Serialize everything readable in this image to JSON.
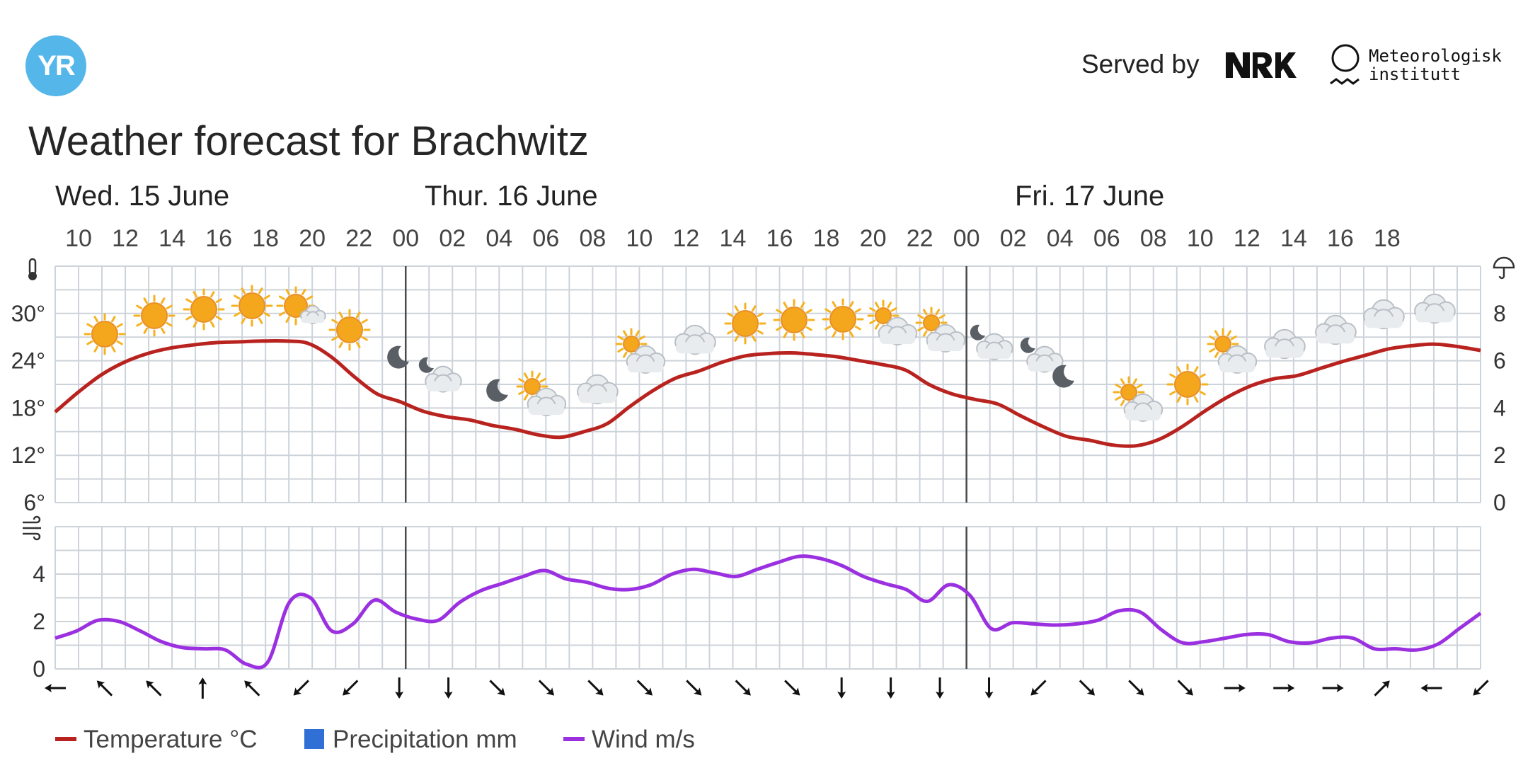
{
  "header": {
    "logo_text": "YR",
    "served_by": "Served by",
    "nrk_logo": "NRK",
    "met_line1": "Meteorologisk",
    "met_line2": "institutt"
  },
  "title": "Weather forecast for Brachwitz",
  "chart_data": {
    "type": "line",
    "days": [
      "Wed. 15 June",
      "Thur. 16 June",
      "Fri. 17 June"
    ],
    "x_labels": [
      "10",
      "12",
      "14",
      "16",
      "18",
      "20",
      "22",
      "00",
      "02",
      "04",
      "06",
      "08",
      "10",
      "12",
      "14",
      "16",
      "18",
      "20",
      "22",
      "00",
      "02",
      "04",
      "06",
      "08",
      "10",
      "12",
      "14",
      "16",
      "18"
    ],
    "temperature_axis": {
      "unit": "°",
      "ticks": [
        "6°",
        "12°",
        "18°",
        "24°",
        "30°"
      ],
      "ylim": [
        6,
        36
      ]
    },
    "precipitation_axis": {
      "ticks": [
        "0",
        "2",
        "4",
        "6",
        "8"
      ],
      "ylim": [
        0,
        10
      ]
    },
    "wind_axis": {
      "ticks": [
        "0",
        "2",
        "4"
      ],
      "ylim": [
        0,
        6
      ]
    },
    "series": [
      {
        "name": "Temperature °C",
        "color": "#b8231f",
        "values": [
          17.5,
          20.0,
          22.2,
          23.8,
          24.9,
          25.6,
          26.0,
          26.3,
          26.4,
          26.5,
          26.5,
          26.2,
          24.5,
          22.0,
          19.8,
          18.8,
          17.6,
          16.9,
          16.5,
          15.8,
          15.3,
          14.6,
          14.3,
          15.0,
          16.0,
          18.2,
          20.2,
          21.8,
          22.7,
          23.8,
          24.6,
          24.9,
          25.0,
          24.8,
          24.5,
          24.0,
          23.5,
          22.8,
          21.0,
          19.8,
          19.1,
          18.5,
          17.0,
          15.6,
          14.4,
          13.9,
          13.3,
          13.2,
          14.0,
          15.6,
          17.6,
          19.4,
          20.8,
          21.7,
          22.1,
          23.0,
          23.9,
          24.7,
          25.5,
          25.9,
          26.1,
          25.8,
          25.3
        ]
      },
      {
        "name": "Precipitation mm",
        "color": "#2f6fd6",
        "values": []
      },
      {
        "name": "Wind m/s",
        "color": "#9b30e0",
        "values": [
          1.3,
          1.6,
          2.05,
          2.0,
          1.6,
          1.15,
          0.9,
          0.85,
          0.8,
          0.2,
          0.3,
          2.8,
          3.0,
          1.6,
          1.9,
          2.9,
          2.4,
          2.1,
          2.05,
          2.8,
          3.3,
          3.6,
          3.9,
          4.15,
          3.8,
          3.65,
          3.4,
          3.35,
          3.55,
          4.0,
          4.2,
          4.05,
          3.9,
          4.2,
          4.5,
          4.75,
          4.65,
          4.35,
          3.9,
          3.6,
          3.35,
          2.85,
          3.55,
          3.1,
          1.7,
          1.95,
          1.9,
          1.85,
          1.9,
          2.05,
          2.45,
          2.4,
          1.65,
          1.1,
          1.15,
          1.3,
          1.45,
          1.45,
          1.15,
          1.1,
          1.3,
          1.3,
          0.85,
          0.85,
          0.8,
          1.05,
          1.7,
          2.35
        ]
      }
    ],
    "weather_icons": [
      "clear-sky-day",
      "clear-sky-day",
      "clear-sky-day",
      "clear-sky-day",
      "fair-day",
      "clear-sky-day",
      "clear-sky-night",
      "partly-cloudy-night",
      "clear-sky-night",
      "partly-cloudy-day",
      "cloudy",
      "partly-cloudy-day",
      "cloudy",
      "clear-sky-day",
      "clear-sky-day",
      "clear-sky-day",
      "partly-cloudy-day",
      "partly-cloudy-day",
      "partly-cloudy-night",
      "partly-cloudy-night",
      "clear-sky-night",
      "partly-cloudy-day",
      "clear-sky-day",
      "partly-cloudy-day",
      "cloudy",
      "cloudy",
      "cloudy",
      "cloudy"
    ],
    "wind_arrows": [
      "arrow-left-icon",
      "arrow-up-left-icon",
      "arrow-up-left-icon",
      "arrow-up-icon",
      "arrow-up-left-icon",
      "arrow-down-left-icon",
      "arrow-down-left-icon",
      "arrow-down-icon",
      "arrow-down-icon",
      "arrow-down-right-icon",
      "arrow-down-right-icon",
      "arrow-down-right-icon",
      "arrow-down-right-icon",
      "arrow-down-right-icon",
      "arrow-down-right-icon",
      "arrow-down-right-icon",
      "arrow-down-icon",
      "arrow-down-icon",
      "arrow-down-icon",
      "arrow-down-icon",
      "arrow-down-left-icon",
      "arrow-down-right-icon",
      "arrow-down-right-icon",
      "arrow-down-right-icon",
      "arrow-right-icon",
      "arrow-right-icon",
      "arrow-right-icon",
      "arrow-up-right-icon",
      "arrow-left-icon",
      "arrow-down-left-icon"
    ],
    "legend_placement": "bottom-left",
    "grid": true
  },
  "legend": [
    {
      "label": "Temperature °C",
      "color": "#b8231f"
    },
    {
      "label": "Precipitation mm",
      "color": "#2f6fd6"
    },
    {
      "label": "Wind m/s",
      "color": "#9b30e0"
    }
  ],
  "icons": {
    "temperature": "thermometer-icon",
    "precipitation": "umbrella-icon",
    "wind": "wind-icon"
  }
}
